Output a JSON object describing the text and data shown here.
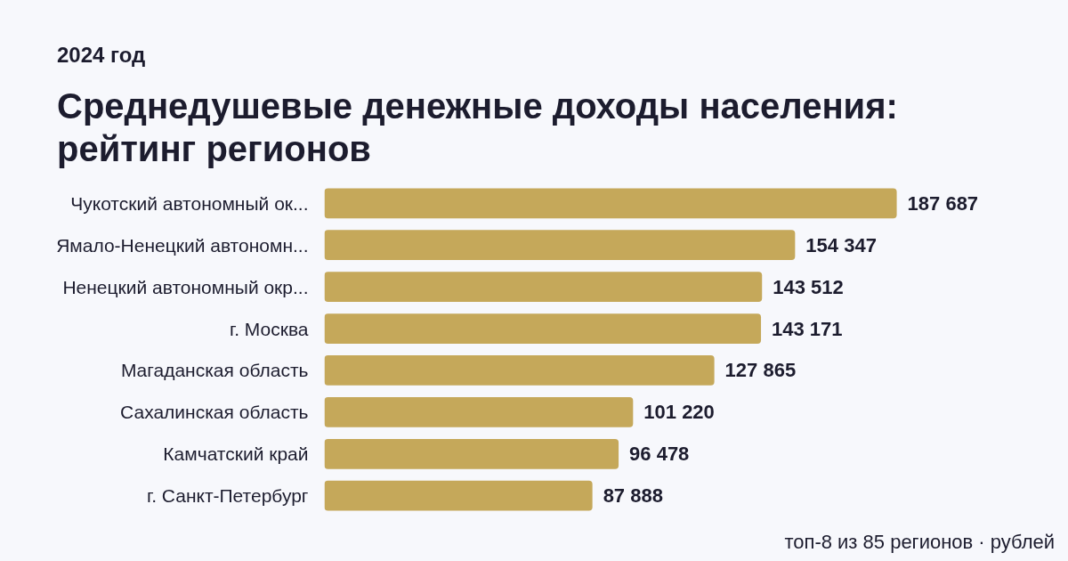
{
  "chart_data": {
    "type": "bar",
    "orientation": "horizontal",
    "subtitle": "2024 год",
    "title": "Среднедушевые денежные доходы населения: рейтинг регионов",
    "categories": [
      "Чукотский автономный ок...",
      "Ямало-Ненецкий автономн...",
      "Ненецкий автономный окр...",
      "г. Москва",
      "Магаданская область",
      "Сахалинская область",
      "Камчатский край",
      "г. Санкт-Петербург"
    ],
    "values": [
      187687,
      154347,
      143512,
      143171,
      127865,
      101220,
      96478,
      87888
    ],
    "value_labels": [
      "187 687",
      "154 347",
      "143 512",
      "143 171",
      "127 865",
      "101 220",
      "96 478",
      "87 888"
    ],
    "color": "#c5a85a",
    "annotations": [
      "топ-8 из 85 регионов · рублей"
    ]
  }
}
